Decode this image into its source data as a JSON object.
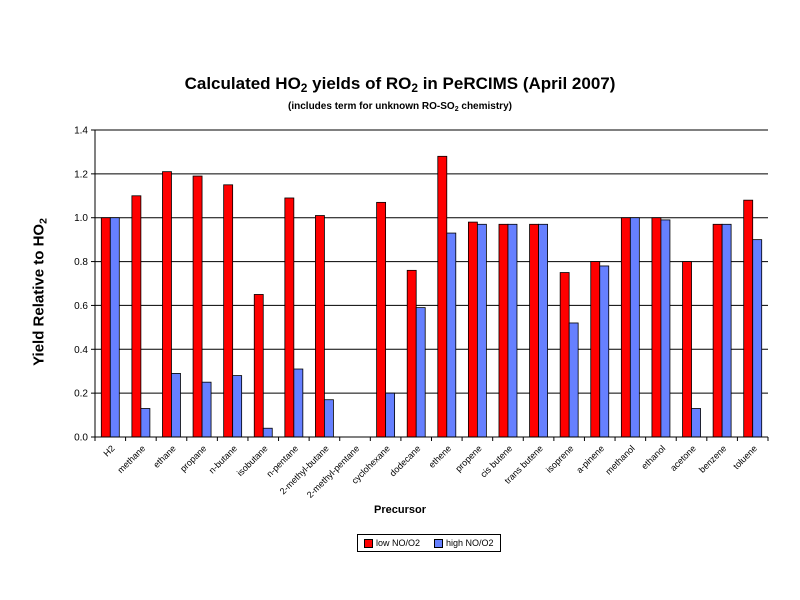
{
  "chart_data": {
    "type": "bar",
    "title": {
      "pre": "Calculated HO",
      "sub1": "2",
      "mid": " yields of RO",
      "sub2": "2",
      "post": " in PeRCIMS (April 2007)"
    },
    "subtitle": {
      "pre": "(includes term for unknown RO-SO",
      "sub": "2",
      "post": " chemistry)"
    },
    "xlabel": "Precursor",
    "ylabel": {
      "pre": "Yield Relative to HO",
      "sub": "2"
    },
    "ylim": [
      0,
      1.4
    ],
    "yticks": [
      "0.0",
      "0.2",
      "0.4",
      "0.6",
      "0.8",
      "1.0",
      "1.2",
      "1.4"
    ],
    "grid": true,
    "legend_position": "bottom",
    "categories": [
      "H2",
      "methane",
      "ethane",
      "propane",
      "n-butane",
      "isobutane",
      "n-pentane",
      "2-methyl-butane",
      "2-methyl-pentane",
      "cyclohexane",
      "dodecane",
      "ethene",
      "propene",
      "cis butene",
      "trans butene",
      "isoprene",
      "a-pinene",
      "methanol",
      "ethanol",
      "acetone",
      "benzene",
      "toluene"
    ],
    "series": [
      {
        "name": "low NO/O2",
        "color": "#ff0000",
        "values": [
          1.0,
          1.1,
          1.21,
          1.19,
          1.15,
          0.65,
          1.09,
          1.01,
          0.0,
          1.07,
          0.76,
          1.28,
          0.98,
          0.97,
          0.97,
          0.75,
          0.8,
          1.0,
          1.0,
          0.8,
          0.97,
          1.08
        ]
      },
      {
        "name": "high NO/O2",
        "color": "#6680ff",
        "values": [
          1.0,
          0.13,
          0.29,
          0.25,
          0.28,
          0.04,
          0.31,
          0.17,
          0.0,
          0.2,
          0.59,
          0.93,
          0.97,
          0.97,
          0.97,
          0.52,
          0.78,
          1.0,
          0.99,
          0.13,
          0.97,
          0.9
        ]
      }
    ]
  }
}
